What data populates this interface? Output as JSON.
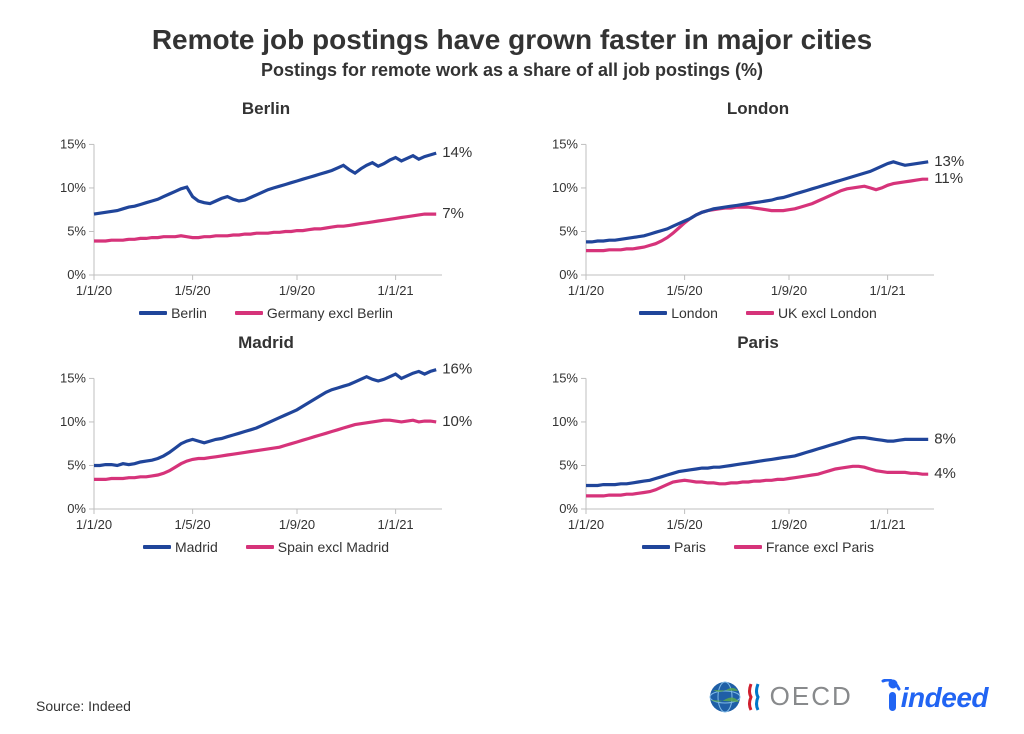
{
  "title": "Remote job postings have grown faster in major cities",
  "subtitle": "Postings for remote work as a share of all job postings (%)",
  "source": "Source: Indeed",
  "colors": {
    "city": "#20459a",
    "country": "#d6337a",
    "axis": "#bfbfbf",
    "text": "#333333",
    "background": "#ffffff"
  },
  "yaxis": {
    "min": 0,
    "max": 17,
    "ticks": [
      0,
      5,
      10,
      15
    ],
    "tick_labels": [
      "0%",
      "5%",
      "10%",
      "15%"
    ]
  },
  "xaxis": {
    "min": 0,
    "max": 60,
    "ticks": [
      0,
      17,
      35,
      52
    ],
    "tick_labels": [
      "1/1/20",
      "1/5/20",
      "1/9/20",
      "1/1/21"
    ]
  },
  "panels": [
    {
      "title": "Berlin",
      "legend_city": "Berlin",
      "legend_country": "Germany excl Berlin",
      "city_end_label": "14%",
      "country_end_label": "7%",
      "city": [
        7.0,
        7.1,
        7.2,
        7.3,
        7.4,
        7.6,
        7.8,
        7.9,
        8.1,
        8.3,
        8.5,
        8.7,
        9.0,
        9.3,
        9.6,
        9.9,
        10.1,
        9.0,
        8.5,
        8.3,
        8.2,
        8.5,
        8.8,
        9.0,
        8.7,
        8.5,
        8.6,
        8.9,
        9.2,
        9.5,
        9.8,
        10.0,
        10.2,
        10.4,
        10.6,
        10.8,
        11.0,
        11.2,
        11.4,
        11.6,
        11.8,
        12.0,
        12.3,
        12.6,
        12.1,
        11.7,
        12.2,
        12.6,
        12.9,
        12.5,
        12.8,
        13.2,
        13.5,
        13.1,
        13.4,
        13.7,
        13.3,
        13.6,
        13.8,
        14.0
      ],
      "country": [
        3.9,
        3.9,
        3.9,
        4.0,
        4.0,
        4.0,
        4.1,
        4.1,
        4.2,
        4.2,
        4.3,
        4.3,
        4.4,
        4.4,
        4.4,
        4.5,
        4.4,
        4.3,
        4.3,
        4.4,
        4.4,
        4.5,
        4.5,
        4.5,
        4.6,
        4.6,
        4.7,
        4.7,
        4.8,
        4.8,
        4.8,
        4.9,
        4.9,
        5.0,
        5.0,
        5.1,
        5.1,
        5.2,
        5.3,
        5.3,
        5.4,
        5.5,
        5.6,
        5.6,
        5.7,
        5.8,
        5.9,
        6.0,
        6.1,
        6.2,
        6.3,
        6.4,
        6.5,
        6.6,
        6.7,
        6.8,
        6.9,
        7.0,
        7.0,
        7.0
      ]
    },
    {
      "title": "London",
      "legend_city": "London",
      "legend_country": "UK excl London",
      "city_end_label": "13%",
      "country_end_label": "11%",
      "city": [
        3.8,
        3.8,
        3.9,
        3.9,
        4.0,
        4.0,
        4.1,
        4.2,
        4.3,
        4.4,
        4.5,
        4.7,
        4.9,
        5.1,
        5.3,
        5.6,
        5.9,
        6.2,
        6.5,
        6.9,
        7.2,
        7.4,
        7.6,
        7.7,
        7.8,
        7.9,
        8.0,
        8.1,
        8.2,
        8.3,
        8.4,
        8.5,
        8.6,
        8.8,
        8.9,
        9.1,
        9.3,
        9.5,
        9.7,
        9.9,
        10.1,
        10.3,
        10.5,
        10.7,
        10.9,
        11.1,
        11.3,
        11.5,
        11.7,
        11.9,
        12.2,
        12.5,
        12.8,
        13.0,
        12.8,
        12.6,
        12.7,
        12.8,
        12.9,
        13.0
      ],
      "country": [
        2.8,
        2.8,
        2.8,
        2.8,
        2.9,
        2.9,
        2.9,
        3.0,
        3.0,
        3.1,
        3.2,
        3.4,
        3.6,
        3.9,
        4.3,
        4.8,
        5.4,
        6.0,
        6.5,
        6.9,
        7.2,
        7.4,
        7.5,
        7.6,
        7.7,
        7.7,
        7.8,
        7.8,
        7.8,
        7.7,
        7.6,
        7.5,
        7.4,
        7.4,
        7.4,
        7.5,
        7.6,
        7.8,
        8.0,
        8.2,
        8.5,
        8.8,
        9.1,
        9.4,
        9.7,
        9.9,
        10.0,
        10.1,
        10.2,
        10.0,
        9.8,
        10.0,
        10.3,
        10.5,
        10.6,
        10.7,
        10.8,
        10.9,
        11.0,
        11.0
      ]
    },
    {
      "title": "Madrid",
      "legend_city": "Madrid",
      "legend_country": "Spain excl Madrid",
      "city_end_label": "16%",
      "country_end_label": "10%",
      "city": [
        5.0,
        5.0,
        5.1,
        5.1,
        5.0,
        5.2,
        5.1,
        5.2,
        5.4,
        5.5,
        5.6,
        5.8,
        6.1,
        6.5,
        7.0,
        7.5,
        7.8,
        8.0,
        7.8,
        7.6,
        7.8,
        8.0,
        8.1,
        8.3,
        8.5,
        8.7,
        8.9,
        9.1,
        9.3,
        9.6,
        9.9,
        10.2,
        10.5,
        10.8,
        11.1,
        11.4,
        11.8,
        12.2,
        12.6,
        13.0,
        13.4,
        13.7,
        13.9,
        14.1,
        14.3,
        14.6,
        14.9,
        15.2,
        14.9,
        14.7,
        14.9,
        15.2,
        15.5,
        15.0,
        15.3,
        15.6,
        15.8,
        15.5,
        15.8,
        16.0
      ],
      "country": [
        3.4,
        3.4,
        3.4,
        3.5,
        3.5,
        3.5,
        3.6,
        3.6,
        3.7,
        3.7,
        3.8,
        3.9,
        4.1,
        4.4,
        4.8,
        5.2,
        5.5,
        5.7,
        5.8,
        5.8,
        5.9,
        6.0,
        6.1,
        6.2,
        6.3,
        6.4,
        6.5,
        6.6,
        6.7,
        6.8,
        6.9,
        7.0,
        7.1,
        7.3,
        7.5,
        7.7,
        7.9,
        8.1,
        8.3,
        8.5,
        8.7,
        8.9,
        9.1,
        9.3,
        9.5,
        9.7,
        9.8,
        9.9,
        10.0,
        10.1,
        10.2,
        10.2,
        10.1,
        10.0,
        10.1,
        10.2,
        10.0,
        10.1,
        10.1,
        10.0
      ]
    },
    {
      "title": "Paris",
      "legend_city": "Paris",
      "legend_country": "France excl Paris",
      "city_end_label": "8%",
      "country_end_label": "4%",
      "city": [
        2.7,
        2.7,
        2.7,
        2.8,
        2.8,
        2.8,
        2.9,
        2.9,
        3.0,
        3.1,
        3.2,
        3.3,
        3.5,
        3.7,
        3.9,
        4.1,
        4.3,
        4.4,
        4.5,
        4.6,
        4.7,
        4.7,
        4.8,
        4.8,
        4.9,
        5.0,
        5.1,
        5.2,
        5.3,
        5.4,
        5.5,
        5.6,
        5.7,
        5.8,
        5.9,
        6.0,
        6.1,
        6.3,
        6.5,
        6.7,
        6.9,
        7.1,
        7.3,
        7.5,
        7.7,
        7.9,
        8.1,
        8.2,
        8.2,
        8.1,
        8.0,
        7.9,
        7.8,
        7.8,
        7.9,
        8.0,
        8.0,
        8.0,
        8.0,
        8.0
      ],
      "country": [
        1.5,
        1.5,
        1.5,
        1.5,
        1.6,
        1.6,
        1.6,
        1.7,
        1.7,
        1.8,
        1.9,
        2.0,
        2.2,
        2.5,
        2.8,
        3.1,
        3.2,
        3.3,
        3.2,
        3.1,
        3.1,
        3.0,
        3.0,
        2.9,
        2.9,
        3.0,
        3.0,
        3.1,
        3.1,
        3.2,
        3.2,
        3.3,
        3.3,
        3.4,
        3.4,
        3.5,
        3.6,
        3.7,
        3.8,
        3.9,
        4.0,
        4.2,
        4.4,
        4.6,
        4.7,
        4.8,
        4.9,
        4.9,
        4.8,
        4.6,
        4.4,
        4.3,
        4.2,
        4.2,
        4.2,
        4.2,
        4.1,
        4.1,
        4.0,
        4.0
      ]
    }
  ],
  "logos": {
    "oecd": "OECD",
    "indeed": "indeed"
  },
  "chart_style": {
    "line_width": 3.2,
    "panel_title_fontsize": 17,
    "axis_fontsize": 13,
    "end_label_fontsize": 15
  }
}
